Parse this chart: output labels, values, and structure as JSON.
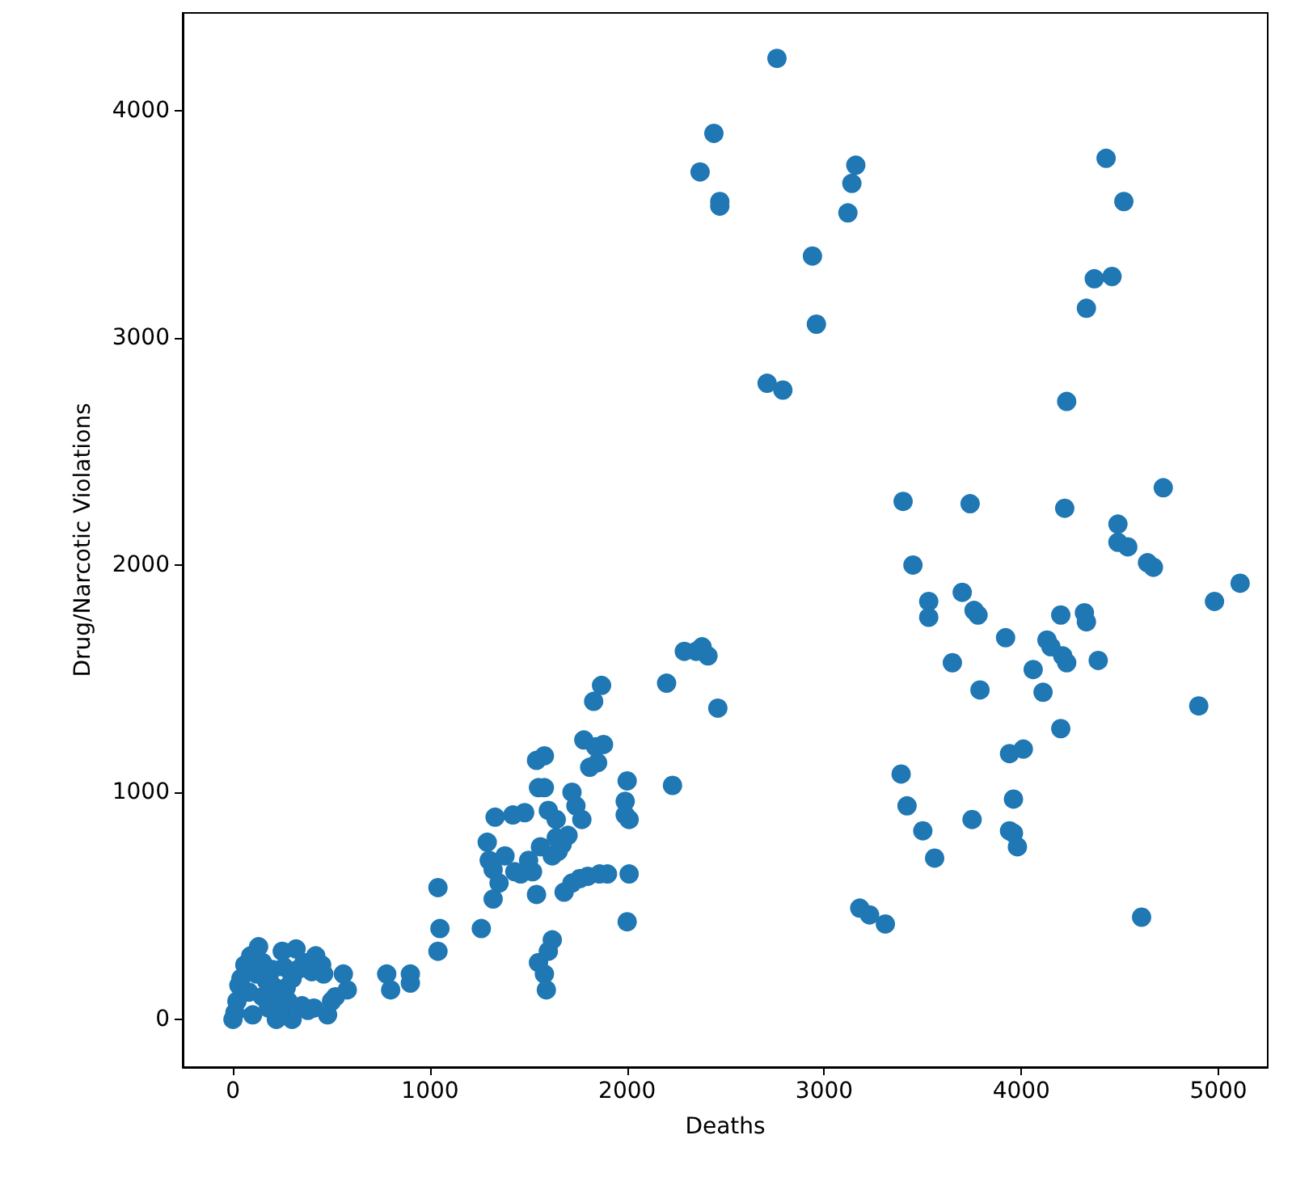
{
  "chart_data": {
    "type": "scatter",
    "xlabel": "Deaths",
    "ylabel": "Drug/Narcotic Violations",
    "marker": "circle",
    "grid": false,
    "xlim": [
      -255,
      5250
    ],
    "ylim": [
      -210,
      4430
    ],
    "xticks": [
      0,
      1000,
      2000,
      3000,
      4000,
      5000
    ],
    "yticks": [
      0,
      1000,
      2000,
      3000,
      4000
    ],
    "series": [
      {
        "color": "#1f77b4",
        "x": [
          2760,
          2440,
          2370,
          2470,
          2470,
          3160,
          3140,
          3120,
          2940,
          2960,
          2710,
          2790,
          4430,
          4520,
          4460,
          4370,
          4330,
          4230,
          3400,
          3740,
          4220,
          4720,
          4490,
          4490,
          4540,
          4640,
          4670,
          4980,
          5110,
          3450,
          3530,
          3530,
          3700,
          3760,
          3780,
          3920,
          4130,
          4150,
          4210,
          4230,
          4200,
          4320,
          4330,
          4390,
          4060,
          3650,
          3790,
          4110,
          4200,
          3940,
          4010,
          3390,
          3420,
          3500,
          3560,
          3750,
          3940,
          3960,
          3980,
          3960,
          4900,
          4610,
          3180,
          3230,
          3310,
          2380,
          2350,
          2410,
          2290,
          2200,
          2460,
          1830,
          1870,
          1780,
          1840,
          1880,
          1850,
          1810,
          2000,
          1990,
          1990,
          2010,
          2230,
          1540,
          1580,
          1550,
          1580,
          1330,
          1420,
          1480,
          1600,
          1640,
          1720,
          1740,
          1770,
          1700,
          1290,
          1300,
          1320,
          1380,
          1430,
          1460,
          1500,
          1520,
          1350,
          1540,
          1560,
          1640,
          1650,
          1680,
          1720,
          1760,
          1800,
          1860,
          1900,
          2010,
          1550,
          1600,
          1620,
          1580,
          1590,
          1320,
          1260,
          2000,
          1670,
          1620,
          1040,
          1050,
          1040,
          780,
          800,
          900,
          900,
          0,
          10,
          20,
          30,
          40,
          80,
          100,
          120,
          130,
          150,
          180,
          200,
          220,
          250,
          260,
          280,
          300,
          320,
          360,
          380,
          420,
          460,
          480,
          520,
          560,
          580,
          60,
          90,
          150,
          200,
          230,
          300,
          350,
          400,
          450,
          170,
          240,
          270,
          330,
          410,
          500
        ],
        "values": [
          4230,
          3900,
          3730,
          3600,
          3580,
          3760,
          3680,
          3550,
          3360,
          3060,
          2800,
          2770,
          3790,
          3600,
          3270,
          3260,
          3130,
          2720,
          2280,
          2270,
          2250,
          2340,
          2180,
          2100,
          2080,
          2010,
          1990,
          1840,
          1920,
          2000,
          1840,
          1770,
          1880,
          1800,
          1780,
          1680,
          1670,
          1640,
          1600,
          1570,
          1780,
          1790,
          1750,
          1580,
          1540,
          1570,
          1450,
          1440,
          1280,
          1170,
          1190,
          1080,
          940,
          830,
          710,
          880,
          830,
          820,
          760,
          970,
          1380,
          450,
          490,
          460,
          420,
          1640,
          1620,
          1600,
          1620,
          1480,
          1370,
          1400,
          1470,
          1230,
          1200,
          1210,
          1130,
          1110,
          1050,
          960,
          900,
          880,
          1030,
          1140,
          1160,
          1020,
          1020,
          890,
          900,
          910,
          920,
          880,
          1000,
          940,
          880,
          810,
          780,
          700,
          660,
          720,
          650,
          640,
          700,
          650,
          600,
          550,
          760,
          800,
          740,
          560,
          600,
          620,
          630,
          640,
          640,
          640,
          250,
          300,
          350,
          200,
          130,
          530,
          400,
          430,
          770,
          720,
          580,
          400,
          300,
          200,
          130,
          200,
          160,
          0,
          30,
          80,
          150,
          180,
          120,
          20,
          200,
          320,
          100,
          50,
          150,
          0,
          300,
          230,
          80,
          180,
          310,
          250,
          40,
          280,
          200,
          20,
          100,
          200,
          130,
          240,
          280,
          250,
          220,
          100,
          0,
          60,
          210,
          240,
          170,
          40,
          140,
          220,
          50,
          80
        ]
      }
    ]
  }
}
